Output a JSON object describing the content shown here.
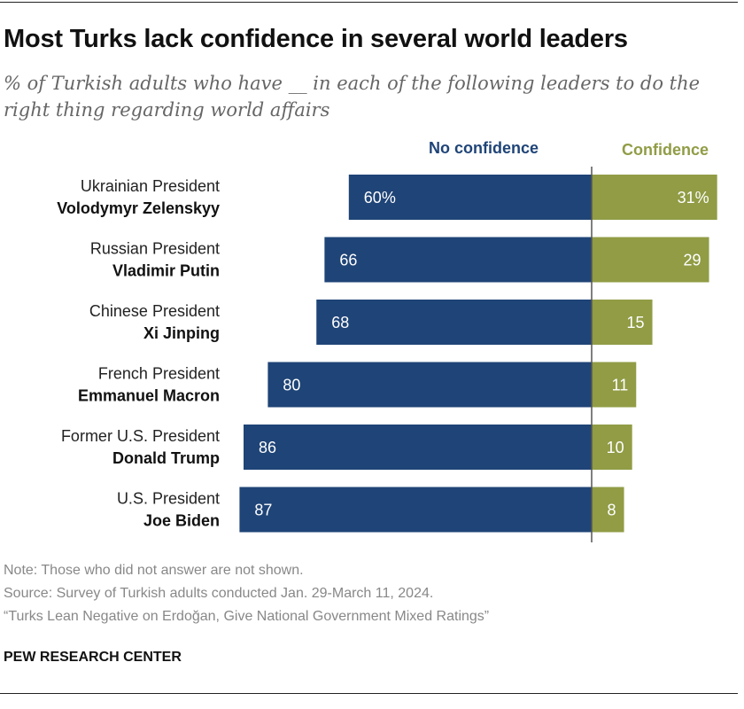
{
  "title": "Most Turks lack confidence in several world leaders",
  "subtitle": "% of Turkish adults who have __ in each of the following leaders to do the right thing regarding world affairs",
  "notes": {
    "note": "Note: Those who did not answer are not shown.",
    "source": "Source: Survey of Turkish adults conducted Jan. 29-March 11, 2024.",
    "report": "“Turks Lean Negative on Erdoğan, Give National Government Mixed Ratings”"
  },
  "brand": "PEW RESEARCH CENTER",
  "colors": {
    "no_confidence": "#1f4477",
    "confidence": "#919c45"
  },
  "chart_data": {
    "type": "bar",
    "orientation": "horizontal diverging",
    "categories": [
      {
        "role": "Ukrainian President",
        "name": "Volodymyr Zelenskyy"
      },
      {
        "role": "Russian President",
        "name": "Vladimir Putin"
      },
      {
        "role": "Chinese President",
        "name": "Xi Jinping"
      },
      {
        "role": "French President",
        "name": "Emmanuel Macron"
      },
      {
        "role": "Former U.S. President",
        "name": "Donald Trump"
      },
      {
        "role": "U.S. President",
        "name": "Joe Biden"
      }
    ],
    "series": [
      {
        "name": "No confidence",
        "values": [
          60,
          66,
          68,
          80,
          86,
          87
        ],
        "labels": [
          "60%",
          "66",
          "68",
          "80",
          "86",
          "87"
        ]
      },
      {
        "name": "Confidence",
        "values": [
          31,
          29,
          15,
          11,
          10,
          8
        ],
        "labels": [
          "31%",
          "29",
          "15",
          "11",
          "10",
          "8"
        ]
      }
    ],
    "unit": "%"
  }
}
